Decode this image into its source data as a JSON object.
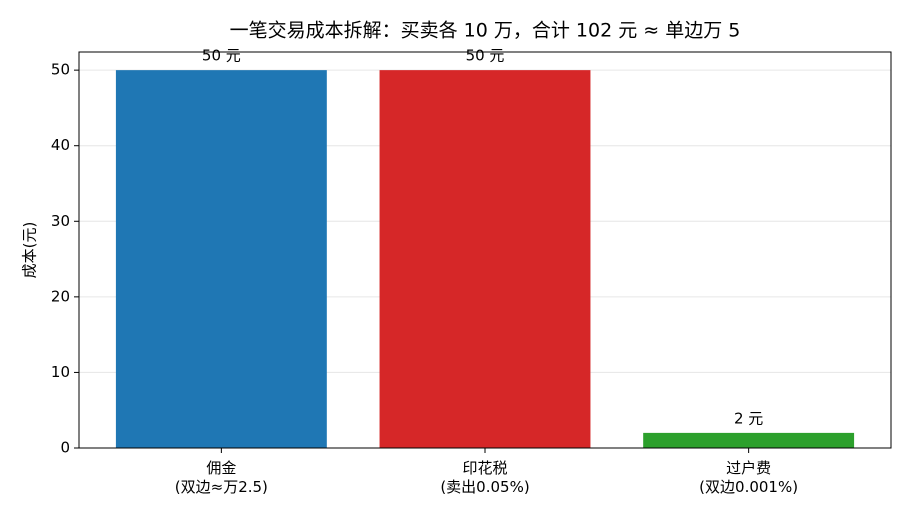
{
  "chart_data": {
    "type": "bar",
    "title": "一笔交易成本拆解：买卖各 10 万，合计 102 元 ≈ 单边万 5",
    "y_label": "成本(元)",
    "categories": [
      "佣金\n(双边≈万2.5)",
      "印花税\n(卖出0.05%)",
      "过户费\n(双边0.001%)"
    ],
    "values": [
      50,
      50,
      2
    ],
    "value_labels": [
      "50 元",
      "50 元",
      "2 元"
    ],
    "colors": [
      "#1f77b4",
      "#d62728",
      "#2ca02c"
    ],
    "ylim": [
      0,
      52.4
    ],
    "yticks": [
      0,
      10,
      20,
      30,
      40,
      50
    ],
    "grid": true
  }
}
